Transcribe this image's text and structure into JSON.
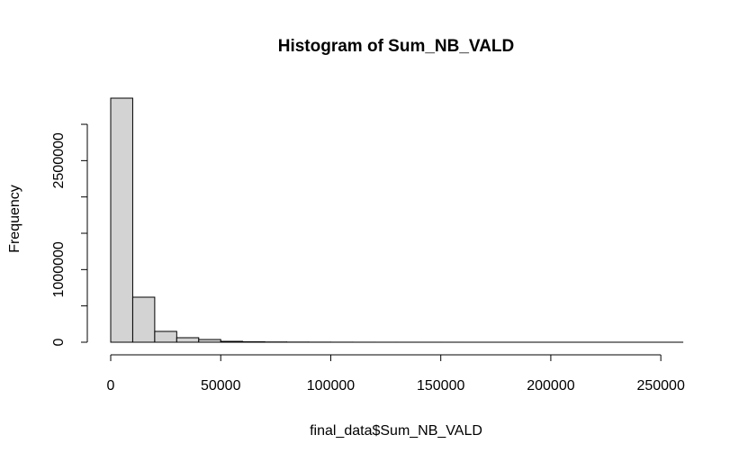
{
  "chart_data": {
    "type": "histogram",
    "title": "Histogram of Sum_NB_VALD",
    "xlabel": "final_data$Sum_NB_VALD",
    "ylabel": "Frequency",
    "bins": [
      0,
      10000,
      20000,
      30000,
      40000,
      50000,
      60000,
      70000,
      80000,
      90000,
      100000,
      110000,
      120000,
      130000,
      140000,
      150000,
      160000,
      170000,
      180000,
      190000,
      200000,
      210000,
      220000,
      230000,
      240000,
      250000,
      260000
    ],
    "values": [
      3360000,
      620000,
      149000,
      62000,
      37000,
      12000,
      6000,
      3500,
      2000,
      1200,
      800,
      500,
      300,
      200,
      150,
      100,
      80,
      60,
      40,
      30,
      20,
      15,
      10,
      8,
      5,
      3
    ],
    "color": "#d3d3d3",
    "xlim": [
      0,
      260000
    ],
    "xticks": [
      0,
      50000,
      100000,
      150000,
      200000,
      250000
    ],
    "ylim": [
      0,
      3360000
    ],
    "yticks": [
      0,
      500000,
      1000000,
      1500000,
      2000000,
      2500000,
      3000000
    ]
  }
}
